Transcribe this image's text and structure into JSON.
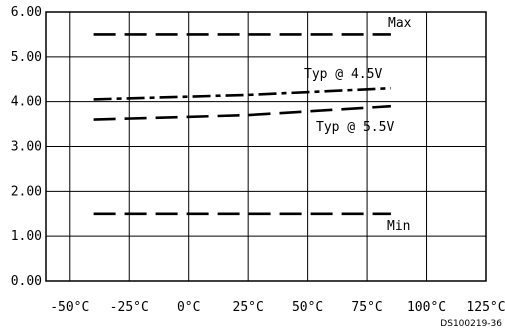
{
  "chart_data": {
    "type": "line",
    "title": "",
    "xlabel": "",
    "ylabel": "",
    "xlim": [
      -60,
      125
    ],
    "ylim": [
      0,
      6
    ],
    "grid": true,
    "x_ticks": [
      -50,
      -25,
      0,
      25,
      50,
      75,
      100,
      125
    ],
    "x_tick_labels": [
      "-50°C",
      "-25°C",
      "0°C",
      "25°C",
      "50°C",
      "75°C",
      "100°C",
      "125°C"
    ],
    "y_ticks": [
      0,
      1,
      2,
      3,
      4,
      5,
      6
    ],
    "y_tick_labels": [
      "0.00",
      "1.00",
      "2.00",
      "3.00",
      "4.00",
      "5.00",
      "6.00"
    ],
    "series": [
      {
        "name": "Max",
        "x": [
          -40,
          85
        ],
        "y": [
          5.5,
          5.5
        ],
        "style": "long-dash"
      },
      {
        "name": "Typ @ 4.5V",
        "x": [
          -40,
          25,
          85
        ],
        "y": [
          4.05,
          4.15,
          4.3
        ],
        "style": "dash-dot"
      },
      {
        "name": "Typ @ 5.5V",
        "x": [
          -40,
          25,
          85
        ],
        "y": [
          3.6,
          3.7,
          3.9
        ],
        "style": "long-dash"
      },
      {
        "name": "Min",
        "x": [
          -40,
          85
        ],
        "y": [
          1.5,
          1.5
        ],
        "style": "long-dash"
      }
    ],
    "annotations": [
      "Max",
      "Typ @ 4.5V",
      "Typ @ 5.5V",
      "Min"
    ],
    "doc_id": "DS100219-36"
  }
}
